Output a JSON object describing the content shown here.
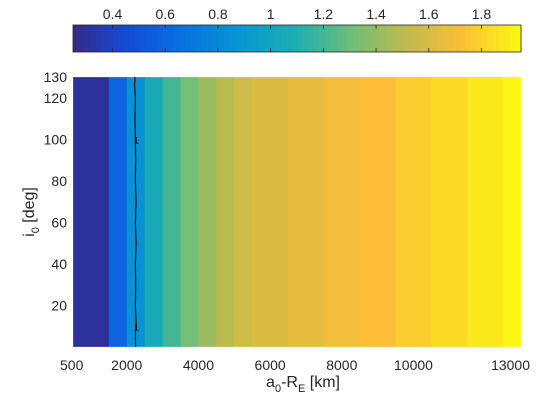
{
  "chart_data": {
    "type": "heatmap",
    "xlabel": {
      "main": "a",
      "sub0": "0",
      "mid": "-R",
      "subE": "E",
      "unit": " [km]"
    },
    "ylabel": {
      "main": "i",
      "sub0": "0",
      "unit": " [deg]"
    },
    "x_ticks": [
      500,
      2000,
      4000,
      6000,
      8000,
      10000,
      13000
    ],
    "x_tick_labels": [
      "500",
      "2000",
      "4000",
      "6000",
      "8000",
      "10000",
      "13000"
    ],
    "y_ticks": [
      20,
      40,
      60,
      80,
      100,
      120,
      130
    ],
    "y_tick_labels": [
      "20",
      "40",
      "60",
      "80",
      "100",
      "120",
      "130"
    ],
    "xlim": [
      500,
      13000
    ],
    "ylim": [
      0,
      130
    ],
    "colorbar": {
      "location": "top",
      "range": [
        0.25,
        1.95
      ],
      "ticks": [
        0.4,
        0.6,
        0.8,
        1,
        1.2,
        1.4,
        1.6,
        1.8
      ],
      "tick_labels": [
        "0.4",
        "0.6",
        "0.8",
        "1",
        "1.2",
        "1.4",
        "1.6",
        "1.8"
      ],
      "colormap": "parula"
    },
    "grid": false,
    "x_edges": [
      500,
      1500,
      2000,
      2500,
      3000,
      3500,
      4000,
      4500,
      5000,
      5500,
      6500,
      7500,
      8500,
      9500,
      10500,
      11500,
      12500,
      13000
    ],
    "column_values": [
      0.3,
      0.6,
      0.85,
      1.05,
      1.2,
      1.32,
      1.42,
      1.5,
      1.56,
      1.61,
      1.65,
      1.69,
      1.73,
      1.78,
      1.83,
      1.88,
      1.93
    ],
    "contour": {
      "level": 1,
      "label": "1",
      "points": [
        [
          2250,
          0
        ],
        [
          2240,
          6
        ],
        [
          2260,
          12
        ],
        [
          2240,
          20
        ],
        [
          2250,
          30
        ],
        [
          2240,
          40
        ],
        [
          2260,
          50
        ],
        [
          2240,
          60
        ],
        [
          2260,
          70
        ],
        [
          2240,
          80
        ],
        [
          2250,
          90
        ],
        [
          2240,
          100
        ],
        [
          2230,
          110
        ],
        [
          2240,
          120
        ],
        [
          2220,
          126
        ],
        [
          2230,
          130
        ]
      ]
    }
  }
}
